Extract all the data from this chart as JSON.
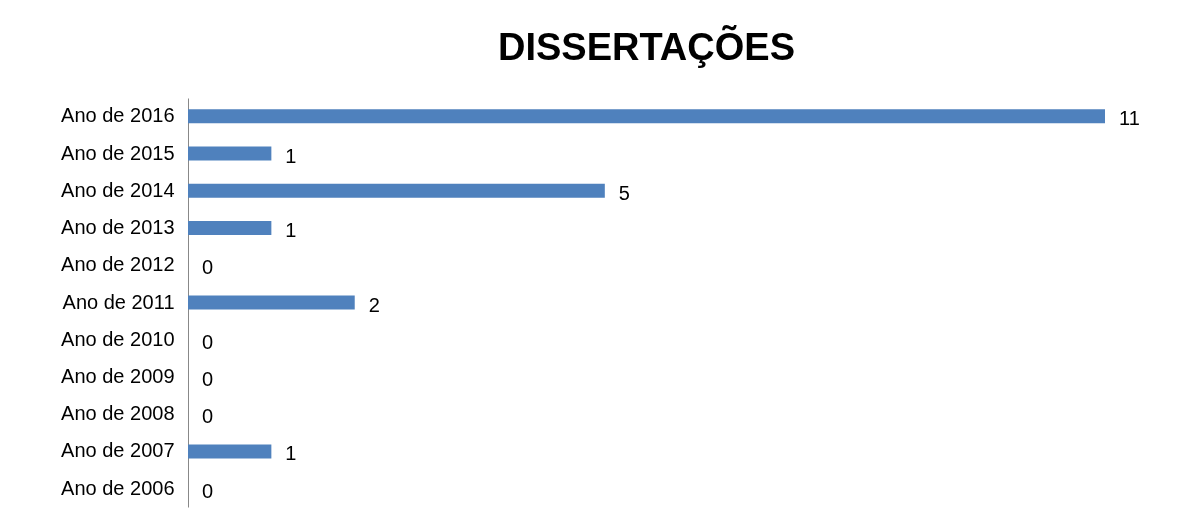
{
  "chart_data": {
    "type": "bar",
    "orientation": "horizontal",
    "title": "DISSERTAÇÕES",
    "categories": [
      "Ano de 2016",
      "Ano de 2015",
      "Ano de 2014",
      "Ano de 2013",
      "Ano de 2012",
      "Ano de 2011",
      "Ano de 2010",
      "Ano de 2009",
      "Ano de 2008",
      "Ano de 2007",
      "Ano de 2006"
    ],
    "values": [
      11,
      1,
      5,
      1,
      0,
      2,
      0,
      0,
      0,
      1,
      0
    ],
    "color": "#4f81bd",
    "data_labels": true
  }
}
